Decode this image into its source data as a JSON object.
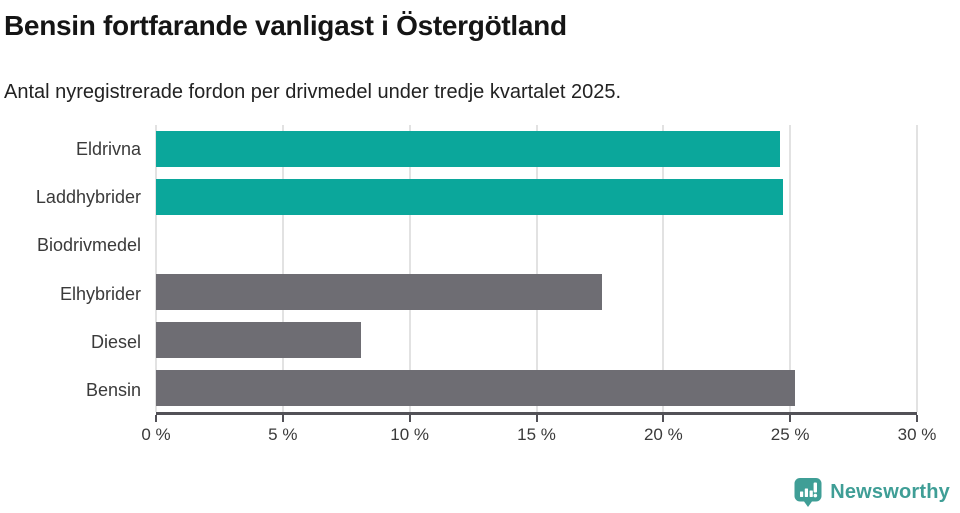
{
  "title": "Bensin fortfarande vanligast i Östergötland",
  "subtitle": "Antal nyregistrerade fordon per drivmedel under tredje kvartalet 2025.",
  "colors": {
    "teal_bar": "#0ba79b",
    "gray_bar": "#6e6d73",
    "gridline": "#e2e2e2",
    "axis": "#525157",
    "label_text": "#3a3a3a",
    "title_text": "#151515",
    "brand_teal": "#3f9e96"
  },
  "chart_data": {
    "type": "bar",
    "orientation": "horizontal",
    "title": "Bensin fortfarande vanligast i Östergötland",
    "subtitle": "Antal nyregistrerade fordon per drivmedel under tredje kvartalet 2025.",
    "categories": [
      "Eldrivna",
      "Laddhybrider",
      "Biodrivmedel",
      "Elhybrider",
      "Diesel",
      "Bensin"
    ],
    "values": [
      24.6,
      24.7,
      0,
      17.6,
      8.1,
      25.2
    ],
    "unit": "%",
    "bar_colors": [
      "#0ba79b",
      "#0ba79b",
      "#0ba79b",
      "#6e6d73",
      "#6e6d73",
      "#6e6d73"
    ],
    "xlim": [
      0,
      30
    ],
    "x_tick_values": [
      0,
      5,
      10,
      15,
      20,
      25,
      30
    ],
    "x_tick_labels": [
      "0 %",
      "5 %",
      "10 %",
      "15 %",
      "20 %",
      "25 %",
      "30 %"
    ],
    "xlabel": "",
    "ylabel": "",
    "grid": "vertical-only",
    "legend": "none"
  },
  "footer": {
    "brand": "Newsworthy",
    "logo_icon": "newsworthy-bubble-barchart-icon"
  }
}
